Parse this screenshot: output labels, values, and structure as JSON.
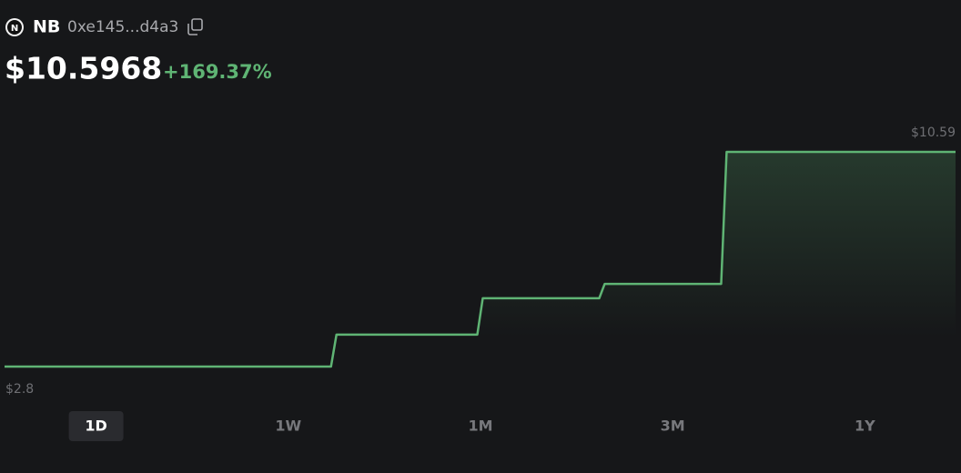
{
  "header": {
    "icon_letter": "N",
    "symbol": "NB",
    "address": "0xe145...d4a3",
    "price": "$10.5968",
    "change": "+169.37%"
  },
  "chart_data": {
    "type": "line",
    "values": [
      2.8,
      2.8,
      2.8,
      2.8,
      2.8,
      2.8,
      2.8,
      2.8,
      2.8,
      2.8,
      2.8,
      2.8,
      2.8,
      2.8,
      3.96,
      3.96,
      3.96,
      3.96,
      3.96,
      3.96,
      5.28,
      5.28,
      5.28,
      5.28,
      5.28,
      5.8,
      5.8,
      5.8,
      5.8,
      5.8,
      10.59,
      10.59,
      10.59,
      10.59,
      10.59,
      10.59,
      10.59,
      10.59,
      10.59,
      10.59
    ],
    "color": "#5fb474",
    "ylim": [
      2.8,
      10.59
    ],
    "yticks": [
      {
        "value": 2.8,
        "label": "$2.8"
      },
      {
        "value": 10.59,
        "label": "$10.59"
      }
    ]
  },
  "tabs": [
    "1D",
    "1W",
    "1M",
    "3M",
    "1Y"
  ],
  "active_tab": 0
}
